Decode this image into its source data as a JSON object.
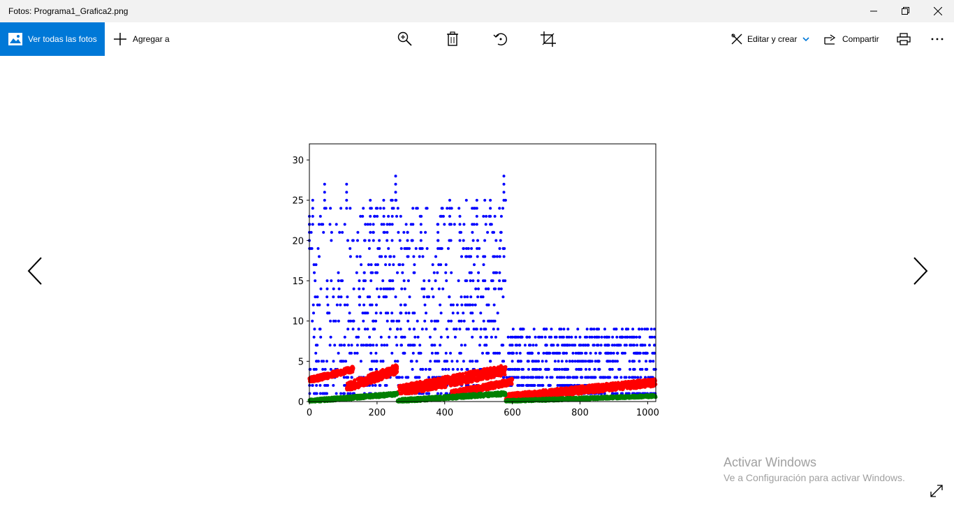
{
  "window": {
    "title": "Fotos: Programa1_Grafica2.png"
  },
  "toolbar": {
    "view_all_label": "Ver todas las fotos",
    "add_label": "Agregar a",
    "edit_label": "Editar y crear",
    "share_label": "Compartir",
    "icons": [
      "zoom-icon",
      "delete-icon",
      "rotate-icon",
      "crop-icon",
      "print-icon",
      "more-icon"
    ]
  },
  "watermark": {
    "line1": "Activar Windows",
    "line2": "Ve a Configuración para activar Windows."
  },
  "chart_data": {
    "type": "scatter",
    "xlim": [
      0,
      1024
    ],
    "ylim": [
      0,
      32
    ],
    "xticks": [
      0,
      200,
      400,
      600,
      800,
      1000
    ],
    "yticks": [
      0,
      5,
      10,
      15,
      20,
      25,
      30
    ],
    "grid": false,
    "series": [
      {
        "color": "#0000ff",
        "segments": [
          {
            "x_start": 0,
            "x_end": 260,
            "y_min": 1,
            "y_max": 28,
            "peaks": [
              [
                0,
                23
              ],
              [
                10,
                25
              ],
              [
                45,
                27
              ],
              [
                110,
                27
              ],
              [
                180,
                25
              ],
              [
                220,
                24
              ],
              [
                245,
                25
              ],
              [
                255,
                28
              ]
            ]
          },
          {
            "x_start": 260,
            "x_end": 580,
            "y_min": 1,
            "y_max": 28,
            "peaks": [
              [
                290,
                21
              ],
              [
                330,
                22
              ],
              [
                380,
                22
              ],
              [
                415,
                25
              ],
              [
                445,
                23
              ],
              [
                495,
                25
              ],
              [
                535,
                25
              ],
              [
                575,
                28
              ]
            ]
          },
          {
            "x_start": 580,
            "x_end": 1024,
            "y_min": 1,
            "y_max": 9,
            "peaks": [
              [
                600,
                7
              ],
              [
                700,
                7
              ],
              [
                760,
                7
              ],
              [
                800,
                8
              ],
              [
                880,
                8
              ],
              [
                960,
                8
              ],
              [
                1020,
                9
              ]
            ]
          }
        ]
      },
      {
        "color": "#ff0000",
        "segments": [
          {
            "x_start": 0,
            "x_end": 130,
            "y_min": 2.5,
            "y_max": 4.5
          },
          {
            "x_start": 110,
            "x_end": 260,
            "y_min": 1.5,
            "y_max": 4.8
          },
          {
            "x_start": 260,
            "x_end": 580,
            "y_min": 1,
            "y_max": 4.8
          },
          {
            "x_start": 420,
            "x_end": 600,
            "y_min": 0.8,
            "y_max": 3
          },
          {
            "x_start": 580,
            "x_end": 1024,
            "y_min": 0.3,
            "y_max": 3
          }
        ]
      },
      {
        "color": "#008000",
        "segments": [
          {
            "x_start": 0,
            "x_end": 260,
            "y_min": 0,
            "y_max": 1.2
          },
          {
            "x_start": 260,
            "x_end": 580,
            "y_min": 0,
            "y_max": 1.3
          },
          {
            "x_start": 580,
            "x_end": 1024,
            "y_min": 0,
            "y_max": 0.9
          }
        ]
      }
    ]
  }
}
